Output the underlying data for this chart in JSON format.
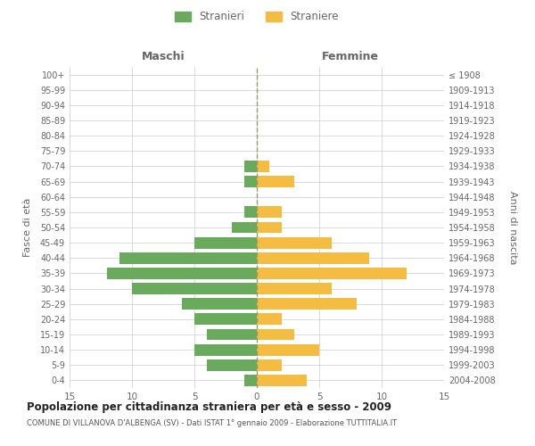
{
  "age_groups": [
    "0-4",
    "5-9",
    "10-14",
    "15-19",
    "20-24",
    "25-29",
    "30-34",
    "35-39",
    "40-44",
    "45-49",
    "50-54",
    "55-59",
    "60-64",
    "65-69",
    "70-74",
    "75-79",
    "80-84",
    "85-89",
    "90-94",
    "95-99",
    "100+"
  ],
  "birth_years": [
    "2004-2008",
    "1999-2003",
    "1994-1998",
    "1989-1993",
    "1984-1988",
    "1979-1983",
    "1974-1978",
    "1969-1973",
    "1964-1968",
    "1959-1963",
    "1954-1958",
    "1949-1953",
    "1944-1948",
    "1939-1943",
    "1934-1938",
    "1929-1933",
    "1924-1928",
    "1919-1923",
    "1914-1918",
    "1909-1913",
    "≤ 1908"
  ],
  "maschi": [
    1,
    4,
    5,
    4,
    5,
    6,
    10,
    12,
    11,
    5,
    2,
    1,
    0,
    1,
    1,
    0,
    0,
    0,
    0,
    0,
    0
  ],
  "femmine": [
    4,
    2,
    5,
    3,
    2,
    8,
    6,
    12,
    9,
    6,
    2,
    2,
    0,
    3,
    1,
    0,
    0,
    0,
    0,
    0,
    0
  ],
  "male_color": "#6aaa5c",
  "female_color": "#f5bc42",
  "title": "Popolazione per cittadinanza straniera per età e sesso - 2009",
  "subtitle": "COMUNE DI VILLANOVA D'ALBENGA (SV) - Dati ISTAT 1° gennaio 2009 - Elaborazione TUTTITALIA.IT",
  "xlabel_left": "Maschi",
  "xlabel_right": "Femmine",
  "ylabel_left": "Fasce di età",
  "ylabel_right": "Anni di nascita",
  "xlim": 15,
  "legend_labels": [
    "Stranieri",
    "Straniere"
  ],
  "background_color": "#ffffff",
  "grid_color": "#cccccc",
  "center_line_color": "#999966",
  "label_color": "#666666"
}
